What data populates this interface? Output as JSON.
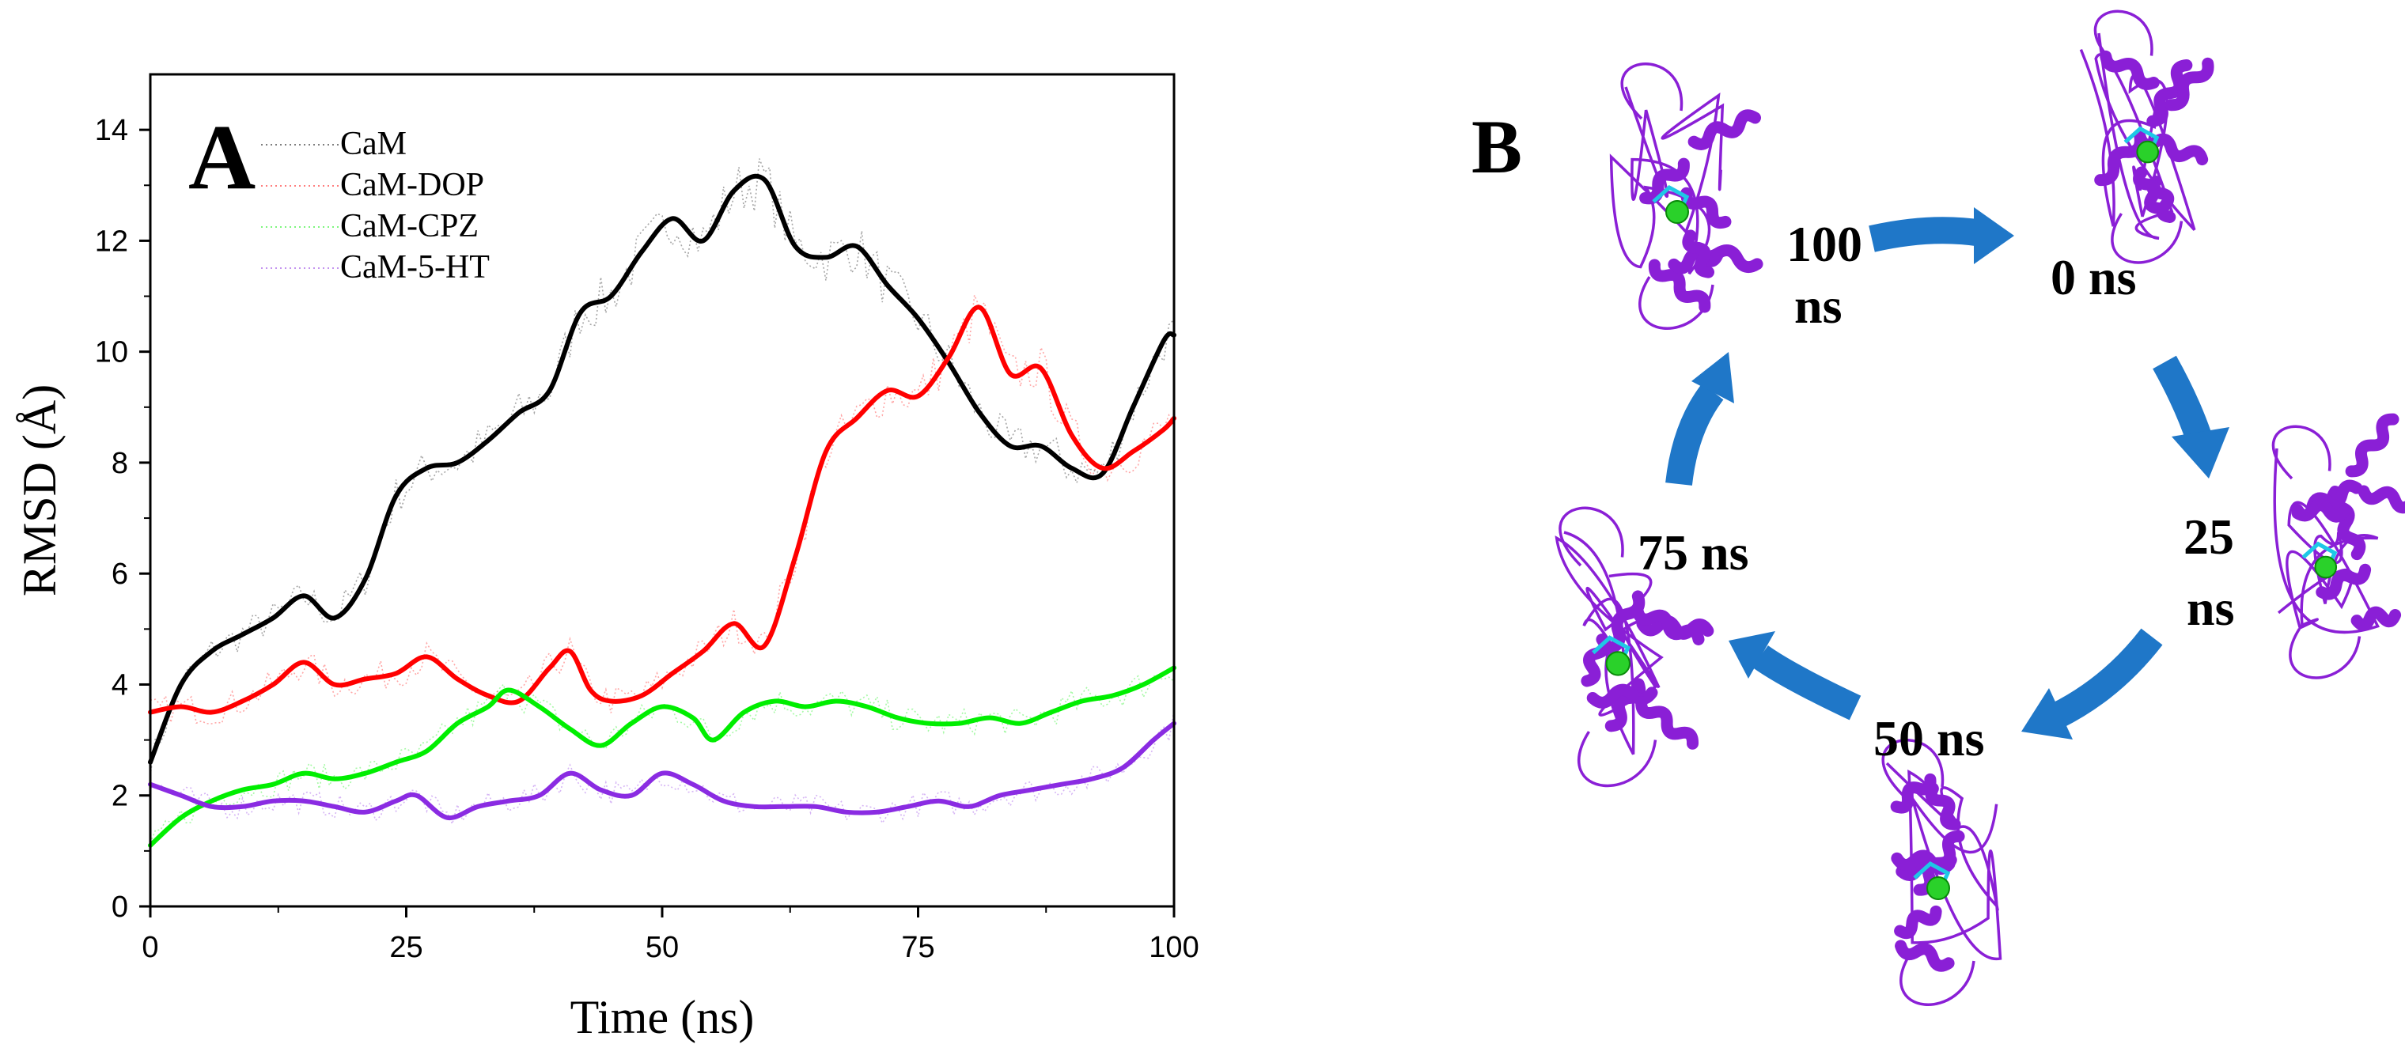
{
  "panel_a": {
    "label": "A"
  },
  "panel_b": {
    "label": "B",
    "snapshots": [
      {
        "key": "t100",
        "label_lines": [
          "100",
          "ns"
        ]
      },
      {
        "key": "t0",
        "label_lines": [
          "0 ns"
        ]
      },
      {
        "key": "t25",
        "label_lines": [
          "25",
          "ns"
        ]
      },
      {
        "key": "t50",
        "label_lines": [
          "50 ns"
        ]
      },
      {
        "key": "t75",
        "label_lines": [
          "75 ns"
        ]
      }
    ],
    "colors": {
      "arrow": "#1f77c8",
      "protein": "#8a1fd6",
      "ligand": "#2ad12a",
      "ligand_stick": "#1ec8e6"
    }
  },
  "chart_data": {
    "type": "line",
    "title": "",
    "xlabel": "Time (ns)",
    "ylabel": "RMSD (Å)",
    "xlim": [
      0,
      100
    ],
    "ylim": [
      0,
      15
    ],
    "xticks": [
      "0",
      "25",
      "50",
      "75",
      "100"
    ],
    "yticks": [
      "0",
      "2",
      "4",
      "6",
      "8",
      "10",
      "12",
      "14"
    ],
    "legend_position": "top-left",
    "series": [
      {
        "name": "CaM",
        "color": "#000000",
        "x": [
          0,
          3,
          6,
          9,
          12,
          15,
          18,
          21,
          24,
          27,
          30,
          33,
          36,
          39,
          42,
          45,
          48,
          51,
          54,
          57,
          60,
          63,
          66,
          69,
          72,
          75,
          78,
          81,
          84,
          87,
          90,
          93,
          96,
          99,
          100
        ],
        "y": [
          2.6,
          4.0,
          4.6,
          4.9,
          5.2,
          5.6,
          5.2,
          5.9,
          7.4,
          7.9,
          8.0,
          8.4,
          8.9,
          9.3,
          10.7,
          11.0,
          11.8,
          12.4,
          12.0,
          12.9,
          13.1,
          11.9,
          11.7,
          11.9,
          11.2,
          10.6,
          9.8,
          8.9,
          8.3,
          8.3,
          7.9,
          7.8,
          9.0,
          10.2,
          10.3
        ]
      },
      {
        "name": "CaM-DOP",
        "color": "#ff0000",
        "x": [
          0,
          3,
          6,
          9,
          12,
          15,
          18,
          21,
          24,
          27,
          30,
          33,
          36,
          39,
          41,
          43,
          45,
          48,
          51,
          54,
          57,
          60,
          63,
          66,
          69,
          72,
          75,
          78,
          81,
          84,
          87,
          90,
          93,
          96,
          99,
          100
        ],
        "y": [
          3.5,
          3.6,
          3.5,
          3.7,
          4.0,
          4.4,
          4.0,
          4.1,
          4.2,
          4.5,
          4.1,
          3.8,
          3.7,
          4.3,
          4.6,
          3.9,
          3.7,
          3.8,
          4.2,
          4.6,
          5.1,
          4.7,
          6.3,
          8.2,
          8.8,
          9.3,
          9.2,
          9.9,
          10.8,
          9.6,
          9.7,
          8.5,
          7.9,
          8.2,
          8.6,
          8.8
        ]
      },
      {
        "name": "CaM-CPZ",
        "color": "#00ee00",
        "x": [
          0,
          3,
          6,
          9,
          12,
          15,
          18,
          21,
          24,
          27,
          30,
          33,
          35,
          38,
          41,
          44,
          47,
          50,
          53,
          55,
          58,
          61,
          64,
          67,
          70,
          73,
          76,
          79,
          82,
          85,
          88,
          91,
          94,
          97,
          100
        ],
        "y": [
          1.1,
          1.6,
          1.9,
          2.1,
          2.2,
          2.4,
          2.3,
          2.4,
          2.6,
          2.8,
          3.3,
          3.6,
          3.9,
          3.6,
          3.2,
          2.9,
          3.3,
          3.6,
          3.4,
          3.0,
          3.5,
          3.7,
          3.6,
          3.7,
          3.6,
          3.4,
          3.3,
          3.3,
          3.4,
          3.3,
          3.5,
          3.7,
          3.8,
          4.0,
          4.3
        ]
      },
      {
        "name": "CaM-5-HT",
        "color": "#8a2be2",
        "x": [
          0,
          3,
          6,
          9,
          12,
          15,
          18,
          21,
          24,
          26,
          29,
          32,
          35,
          38,
          41,
          44,
          47,
          50,
          53,
          56,
          59,
          62,
          65,
          68,
          71,
          74,
          77,
          80,
          83,
          86,
          89,
          92,
          95,
          98,
          100
        ],
        "y": [
          2.2,
          2.0,
          1.8,
          1.8,
          1.9,
          1.9,
          1.8,
          1.7,
          1.9,
          2.0,
          1.6,
          1.8,
          1.9,
          2.0,
          2.4,
          2.1,
          2.0,
          2.4,
          2.2,
          1.9,
          1.8,
          1.8,
          1.8,
          1.7,
          1.7,
          1.8,
          1.9,
          1.8,
          2.0,
          2.1,
          2.2,
          2.3,
          2.5,
          3.0,
          3.3
        ]
      }
    ]
  }
}
